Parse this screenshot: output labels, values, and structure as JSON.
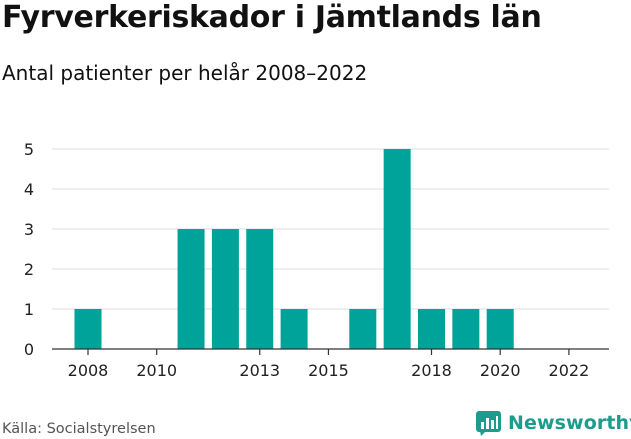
{
  "header": {
    "title": "Fyrverkeriskador i Jämtlands län",
    "subtitle": "Antal patienter per helår 2008–2022"
  },
  "footer": {
    "source": "Källa: Socialstyrelsen",
    "brand": "Newsworthy"
  },
  "colors": {
    "bar": "#00a39a",
    "grid": "#dddddd",
    "brand": "#1d9c8e"
  },
  "chart_data": {
    "type": "bar",
    "categories": [
      2008,
      2009,
      2010,
      2011,
      2012,
      2013,
      2014,
      2015,
      2016,
      2017,
      2018,
      2019,
      2020,
      2021,
      2022
    ],
    "values": [
      1,
      0,
      0,
      3,
      3,
      3,
      1,
      0,
      1,
      5,
      1,
      1,
      1,
      0,
      0
    ],
    "x_tick_labels": [
      "2008",
      "2010",
      "2013",
      "2015",
      "2018",
      "2020",
      "2022"
    ],
    "y_ticks": [
      0,
      1,
      2,
      3,
      4,
      5
    ],
    "ylim": [
      0,
      5
    ],
    "xlabel": "",
    "ylabel": "",
    "grid": true
  }
}
